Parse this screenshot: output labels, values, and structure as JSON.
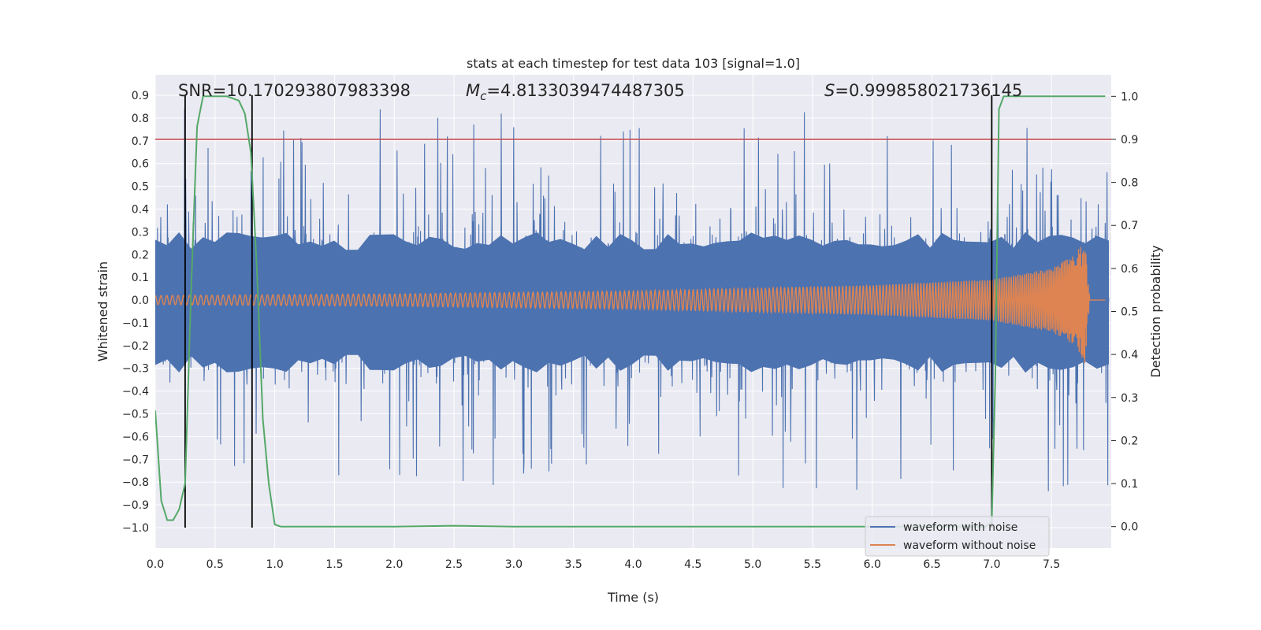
{
  "chart_data": {
    "type": "line",
    "title": "stats at each timestep for test data 103 [signal=1.0]",
    "xlabel": "Time (s)",
    "ylabel_left": "Whitened strain",
    "ylabel_right": "Detection probability",
    "xlim": [
      0.0,
      8.0
    ],
    "ylim_left": [
      -1.09,
      0.99
    ],
    "ylim_right": [
      -0.05,
      1.05
    ],
    "x_ticks": [
      "0.0",
      "0.5",
      "1.0",
      "1.5",
      "2.0",
      "2.5",
      "3.0",
      "3.5",
      "4.0",
      "4.5",
      "5.0",
      "5.5",
      "6.0",
      "6.5",
      "7.0",
      "7.5"
    ],
    "y_ticks_left": [
      "−1.0",
      "−0.9",
      "−0.8",
      "−0.7",
      "−0.6",
      "−0.5",
      "−0.4",
      "−0.3",
      "−0.2",
      "−0.1",
      "0.0",
      "0.1",
      "0.2",
      "0.3",
      "0.4",
      "0.5",
      "0.6",
      "0.7",
      "0.8",
      "0.9"
    ],
    "y_ticks_right": [
      "0.0",
      "0.1",
      "0.2",
      "0.3",
      "0.4",
      "0.5",
      "0.6",
      "0.7",
      "0.8",
      "0.9",
      "1.0"
    ],
    "grid": true,
    "legend_position": "lower-right",
    "annotations": {
      "snr_text": "SNR=10.170293807983398",
      "mc_prefix": "M",
      "mc_sub": "c",
      "mc_value": "=4.8133039474487305",
      "s_prefix": "S",
      "s_value": "=0.999858021736145"
    },
    "threshold_line": {
      "y_right": 0.9,
      "color": "#c44e52"
    },
    "vertical_markers_x": [
      0.25,
      0.81,
      7.0
    ],
    "series": [
      {
        "name": "waveform with noise",
        "color": "#4c72b0",
        "axis": "left",
        "description": "dense whitened noisy strain, typical envelope approx ±0.3, peaks up to ±0.9"
      },
      {
        "name": "waveform without noise",
        "color": "#dd8452",
        "axis": "left",
        "description": "chirp: amplitude grows from 0.02 at t=0 to about 0.28 near t=7.8, then ringdown to 0",
        "envelope_points": [
          [
            0.0,
            0.02
          ],
          [
            2.0,
            0.027
          ],
          [
            4.0,
            0.04
          ],
          [
            6.0,
            0.065
          ],
          [
            7.0,
            0.09
          ],
          [
            7.5,
            0.14
          ],
          [
            7.7,
            0.2
          ],
          [
            7.78,
            0.28
          ],
          [
            7.82,
            0.0
          ],
          [
            7.95,
            0.0
          ]
        ],
        "chirp_end": 7.82
      },
      {
        "color": "#55a868",
        "axis": "right",
        "x": [
          0.0,
          0.05,
          0.1,
          0.15,
          0.2,
          0.25,
          0.3,
          0.35,
          0.4,
          0.5,
          0.6,
          0.7,
          0.75,
          0.8,
          0.85,
          0.9,
          0.95,
          1.0,
          1.05,
          1.5,
          2.0,
          2.5,
          3.0,
          4.0,
          5.0,
          6.0,
          6.5,
          6.95,
          7.0,
          7.03,
          7.06,
          7.1,
          7.15,
          7.5,
          7.95
        ],
        "y": [
          0.27,
          0.06,
          0.015,
          0.015,
          0.04,
          0.1,
          0.55,
          0.93,
          1.0,
          1.0,
          1.0,
          0.99,
          0.96,
          0.87,
          0.6,
          0.25,
          0.1,
          0.005,
          0.0,
          0.0,
          0.0,
          0.002,
          0.0,
          0.0,
          0.0,
          0.0,
          0.0,
          0.0,
          0.01,
          0.35,
          0.97,
          1.0,
          1.0,
          1.0,
          1.0
        ]
      }
    ]
  }
}
